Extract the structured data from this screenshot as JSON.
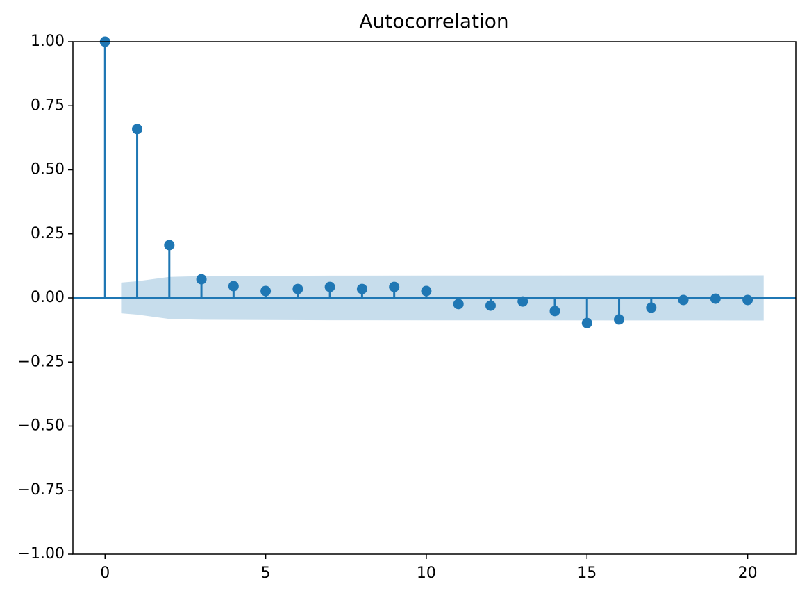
{
  "chart_data": {
    "type": "stem",
    "title": "Autocorrelation",
    "x": [
      0,
      1,
      2,
      3,
      4,
      5,
      6,
      7,
      8,
      9,
      10,
      11,
      12,
      13,
      14,
      15,
      16,
      17,
      18,
      19,
      20
    ],
    "values": [
      1.0,
      0.659,
      0.206,
      0.073,
      0.046,
      0.027,
      0.035,
      0.043,
      0.035,
      0.043,
      0.027,
      -0.024,
      -0.03,
      -0.014,
      -0.051,
      -0.098,
      -0.084,
      -0.038,
      -0.008,
      -0.003,
      -0.008
    ],
    "color": "#1f77b4",
    "confidence_band": {
      "x": [
        0.5,
        1,
        2,
        3,
        7,
        20.5
      ],
      "upper": [
        0.06,
        0.065,
        0.082,
        0.085,
        0.087,
        0.088
      ],
      "lower": [
        -0.06,
        -0.065,
        -0.082,
        -0.085,
        -0.087,
        -0.088
      ],
      "color": "#1f77b4",
      "opacity": 0.25
    },
    "xlim": [
      -1,
      21.5
    ],
    "xticks": [
      0,
      5,
      10,
      15,
      20
    ],
    "ylim": [
      -1,
      1
    ],
    "yticks": [
      {
        "value": -1,
        "label": "−1.00"
      },
      {
        "value": -0.75,
        "label": "−0.75"
      },
      {
        "value": -0.5,
        "label": "−0.50"
      },
      {
        "value": -0.25,
        "label": "−0.25"
      },
      {
        "value": 0,
        "label": "0.00"
      },
      {
        "value": 0.25,
        "label": "0.25"
      },
      {
        "value": 0.5,
        "label": "0.50"
      },
      {
        "value": 0.75,
        "label": "0.75"
      },
      {
        "value": 1,
        "label": "1.00"
      }
    ],
    "grid": false
  }
}
